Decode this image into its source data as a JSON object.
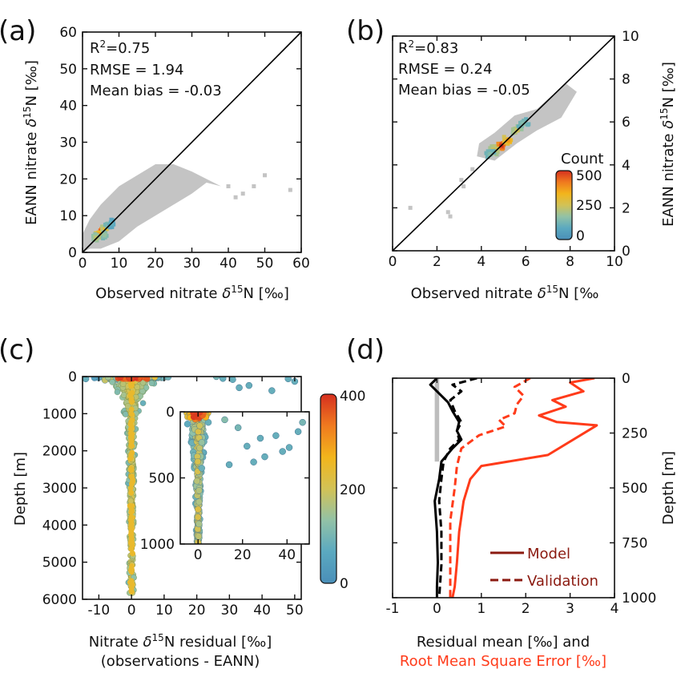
{
  "colors": {
    "gray": "#c4c4c4",
    "identity_line": "#000000",
    "model_residual": "#000000",
    "rmse": "#ff3b1a",
    "legend_text": "#8b1a10",
    "rmse_label": "#ff3b1a",
    "shade": "#bdbdbd",
    "colormap": [
      "#4a8fb8",
      "#5ba9c0",
      "#92c2a6",
      "#d2c256",
      "#f2b51c",
      "#f07a1f",
      "#d62f1f"
    ]
  },
  "chart_data": [
    {
      "type": "heatmap",
      "panel": "(a)",
      "xlabel_main": "Observed nitrate ",
      "xlabel_delta": "δ",
      "xlabel_sup": "15",
      "xlabel_end": "N [‰]",
      "ylabel_main": "EANN nitrate ",
      "ylabel_delta": "δ",
      "ylabel_sup": "15",
      "ylabel_end": "N [‰]",
      "xlim": [
        0,
        60
      ],
      "ylim": [
        0,
        60
      ],
      "xticks": [
        "0",
        "10",
        "20",
        "30",
        "40",
        "50",
        "60"
      ],
      "yticks": [
        "0",
        "10",
        "20",
        "30",
        "40",
        "50",
        "60"
      ],
      "stats": {
        "r2_label": "R",
        "r2_sup": "2",
        "r2_value": "=0.75",
        "rmse": "RMSE = 1.94",
        "bias": "Mean bias = -0.03"
      },
      "identity_line": [
        [
          0,
          0
        ],
        [
          60,
          60
        ]
      ],
      "gray_cloud": [
        [
          0,
          0
        ],
        [
          2,
          1
        ],
        [
          5,
          1
        ],
        [
          10,
          3
        ],
        [
          15,
          7
        ],
        [
          20,
          10
        ],
        [
          25,
          13
        ],
        [
          30,
          16
        ],
        [
          34,
          19
        ],
        [
          38,
          18
        ],
        [
          30,
          22
        ],
        [
          25,
          24
        ],
        [
          20,
          24
        ],
        [
          15,
          21
        ],
        [
          10,
          18
        ],
        [
          5,
          13
        ],
        [
          2,
          9
        ],
        [
          0,
          5
        ]
      ],
      "outliers": [
        [
          40,
          18
        ],
        [
          42,
          15
        ],
        [
          44,
          16
        ],
        [
          47,
          18
        ],
        [
          50,
          21
        ],
        [
          57,
          17
        ]
      ],
      "hot_points": [
        [
          5.3,
          5.6,
          1.0
        ],
        [
          4.5,
          4.8,
          0.75
        ],
        [
          6.2,
          6.3,
          0.6
        ],
        [
          7.2,
          7.1,
          0.35
        ],
        [
          3.8,
          4.0,
          0.45
        ],
        [
          8.0,
          7.8,
          0.2
        ],
        [
          6.0,
          4.8,
          0.35
        ]
      ]
    },
    {
      "type": "heatmap",
      "panel": "(b)",
      "xlabel_main": "Observed nitrate ",
      "xlabel_delta": "δ",
      "xlabel_sup": "15",
      "xlabel_end": "N [‰",
      "ylabel_main": "EANN nitrate ",
      "ylabel_delta": "δ",
      "ylabel_sup": "15",
      "ylabel_end": "N [‰]",
      "xlim": [
        0,
        10
      ],
      "ylim": [
        0,
        10
      ],
      "xticks": [
        "0",
        "2",
        "4",
        "6",
        "8",
        "10"
      ],
      "yticks": [
        "0",
        "2",
        "4",
        "6",
        "8",
        "10"
      ],
      "stats": {
        "r2_label": "R",
        "r2_sup": "2",
        "r2_value": "=0.83",
        "rmse": "RMSE = 0.24",
        "bias": "Mean bias = -0.05"
      },
      "identity_line": [
        [
          0,
          0
        ],
        [
          10,
          10
        ]
      ],
      "gray_cloud": [
        [
          3.8,
          4.4
        ],
        [
          4.6,
          4.2
        ],
        [
          5.6,
          5.0
        ],
        [
          6.5,
          5.6
        ],
        [
          7.6,
          6.2
        ],
        [
          8.3,
          7.4
        ],
        [
          7.8,
          7.8
        ],
        [
          6.5,
          6.6
        ],
        [
          5.5,
          6.3
        ],
        [
          4.6,
          5.5
        ],
        [
          3.9,
          5.0
        ]
      ],
      "outliers": [
        [
          0.8,
          2.0
        ],
        [
          2.5,
          1.8
        ],
        [
          2.6,
          1.6
        ],
        [
          3.2,
          3.0
        ],
        [
          3.1,
          3.3
        ],
        [
          3.6,
          3.8
        ],
        [
          8.1,
          7.3
        ]
      ],
      "hot_points": [
        [
          4.9,
          4.9,
          1.0
        ],
        [
          5.2,
          5.15,
          0.75
        ],
        [
          4.6,
          4.7,
          0.55
        ],
        [
          5.6,
          5.6,
          0.5
        ],
        [
          5.9,
          5.9,
          0.3
        ],
        [
          4.4,
          4.5,
          0.3
        ]
      ],
      "colorbar": {
        "label": "Count",
        "min": 0,
        "max": 500,
        "ticks": [
          "0",
          "250",
          "500"
        ]
      }
    },
    {
      "type": "scatter",
      "panel": "(c)",
      "xlabel_main": "Nitrate ",
      "xlabel_delta": "δ",
      "xlabel_sup": "15",
      "xlabel_end": "N residual [‰]",
      "xlabel2": "(observations - EANN)",
      "ylabel": "Depth [m]",
      "xlim": [
        -15,
        52
      ],
      "ylim": [
        6000,
        0
      ],
      "xticks": [
        "-10",
        "0",
        "10",
        "20",
        "30",
        "40",
        "50"
      ],
      "yticks": [
        "0",
        "1000",
        "2000",
        "3000",
        "4000",
        "5000",
        "6000"
      ],
      "far_points": [
        [
          26,
          0,
          0.25
        ],
        [
          28,
          50,
          0.2
        ],
        [
          31,
          80,
          0.2
        ],
        [
          36,
          240,
          0.2
        ],
        [
          43,
          380,
          0.2
        ],
        [
          48,
          60,
          0.2
        ],
        [
          50,
          130,
          0.2
        ],
        [
          -14,
          60,
          0.2
        ],
        [
          33,
          300,
          0.2
        ]
      ],
      "colorbar": {
        "min": 0,
        "max": 400,
        "ticks": [
          "400",
          "200",
          "0"
        ]
      },
      "inset": {
        "xlim": [
          -8,
          50
        ],
        "ylim": [
          1000,
          0
        ],
        "xticks": [
          "0",
          "20",
          "40"
        ],
        "yticks": [
          "0",
          "500",
          "1000"
        ],
        "far_points": [
          [
            12,
            60,
            0.3
          ],
          [
            18,
            120,
            0.25
          ],
          [
            22,
            260,
            0.2
          ],
          [
            28,
            200,
            0.2
          ],
          [
            30,
            340,
            0.2
          ],
          [
            35,
            180,
            0.2
          ],
          [
            38,
            300,
            0.2
          ],
          [
            41,
            270,
            0.2
          ],
          [
            45,
            150,
            0.2
          ],
          [
            47,
            80,
            0.25
          ],
          [
            14,
            400,
            0.2
          ],
          [
            25,
            380,
            0.2
          ]
        ]
      }
    },
    {
      "type": "line",
      "panel": "(d)",
      "xlabel": "Residual mean [‰] and",
      "xlabel2": "Root Mean Square Error [‰]",
      "ylabel": "Depth [m]",
      "xlim": [
        -1,
        4
      ],
      "ylim": [
        1000,
        0
      ],
      "xticks": [
        "-1",
        "0",
        "1",
        "2",
        "3",
        "4"
      ],
      "yticks": [
        "0",
        "250",
        "500",
        "750",
        "1000"
      ],
      "legend": [
        {
          "name": "Model",
          "style": "solid"
        },
        {
          "name": "Validation",
          "style": "dashed"
        }
      ],
      "series": [
        {
          "name": "Model residual mean",
          "color": "#000000",
          "dash": false,
          "x": [
            0.0,
            -0.15,
            0.05,
            0.25,
            0.35,
            0.5,
            0.45,
            0.55,
            0.35,
            0.1,
            0.05,
            -0.05,
            0.0,
            0.02,
            0.0,
            0.0
          ],
          "y": [
            0,
            30,
            70,
            110,
            150,
            200,
            240,
            280,
            320,
            380,
            460,
            560,
            700,
            840,
            950,
            1000
          ]
        },
        {
          "name": "Validation residual mean",
          "color": "#000000",
          "dash": true,
          "x": [
            0.9,
            0.35,
            0.55,
            0.3,
            0.4,
            0.55,
            0.45,
            0.5,
            0.3,
            0.15,
            0.1,
            0.05,
            0.1,
            0.1,
            0.05
          ],
          "y": [
            0,
            30,
            60,
            100,
            150,
            200,
            240,
            280,
            320,
            380,
            460,
            560,
            700,
            850,
            1000
          ]
        },
        {
          "name": "Model RMSE",
          "color": "#ff3b1a",
          "dash": false,
          "x": [
            3.55,
            3.0,
            3.3,
            2.6,
            2.9,
            2.3,
            2.7,
            3.6,
            2.5,
            1.0,
            0.75,
            0.6,
            0.5,
            0.45,
            0.4,
            0.35
          ],
          "y": [
            0,
            20,
            60,
            100,
            130,
            170,
            200,
            215,
            350,
            400,
            460,
            560,
            700,
            840,
            950,
            1000
          ]
        },
        {
          "name": "Validation RMSE",
          "color": "#ff3b1a",
          "dash": true,
          "x": [
            2.1,
            1.75,
            1.95,
            1.8,
            1.75,
            1.4,
            1.55,
            0.95,
            0.55,
            0.45,
            0.4,
            0.3,
            0.3,
            0.3
          ],
          "y": [
            0,
            40,
            80,
            120,
            160,
            190,
            220,
            260,
            320,
            400,
            500,
            650,
            820,
            1000
          ]
        }
      ]
    }
  ]
}
